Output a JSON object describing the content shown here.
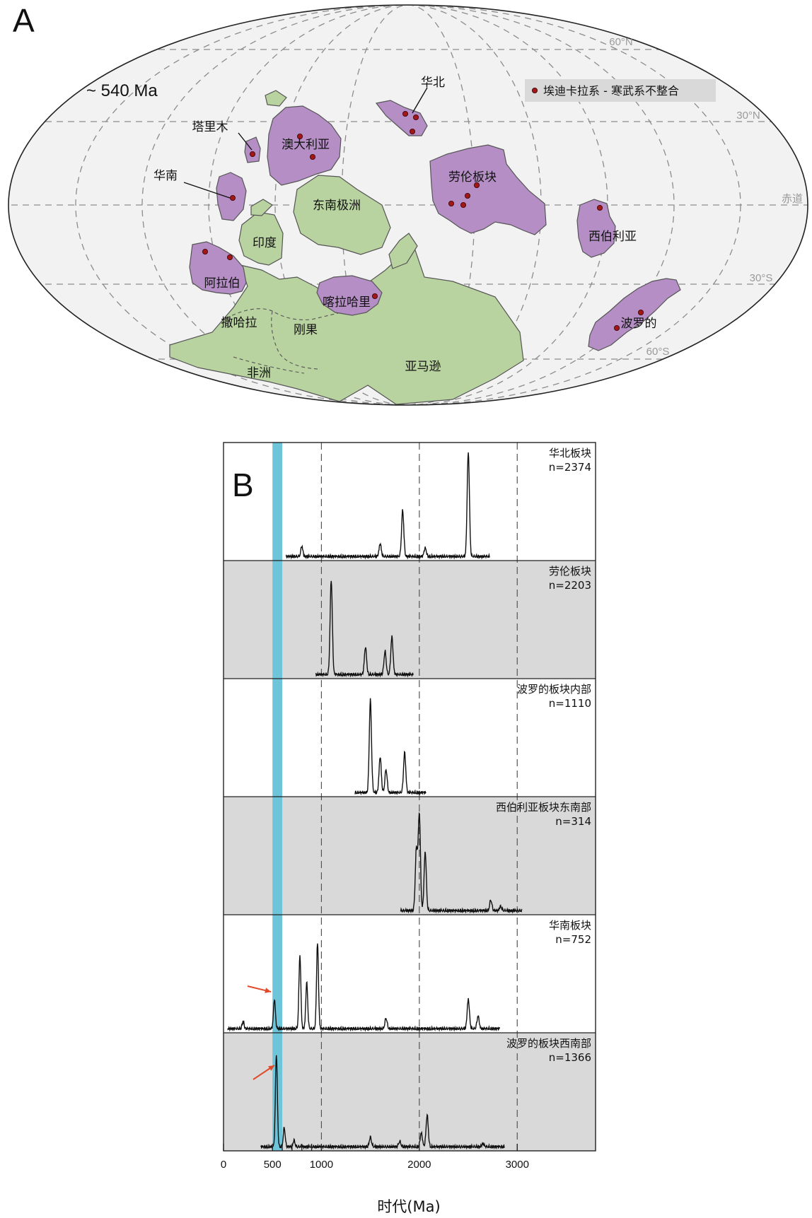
{
  "panel_a": {
    "letter": "A",
    "age_label": "~ 540 Ma",
    "legend_label": "埃迪卡拉系 - 寒武系不整合",
    "latitudes": [
      "60°N",
      "30°N",
      "赤道",
      "30°S",
      "60°S"
    ],
    "colors": {
      "ocean": "#f2f2f2",
      "gondwana": "#b9d3a0",
      "block": "#b48ec4",
      "dot": "#a01818",
      "legend_bg": "#d9d9d9"
    },
    "blocks": [
      {
        "name": "华北",
        "group": "block"
      },
      {
        "name": "塔里木",
        "group": "block"
      },
      {
        "name": "澳大利亚",
        "group": "block"
      },
      {
        "name": "华南",
        "group": "block"
      },
      {
        "name": "劳伦板块",
        "group": "block"
      },
      {
        "name": "西伯利亚",
        "group": "block"
      },
      {
        "name": "阿拉伯",
        "group": "block"
      },
      {
        "name": "喀拉哈里",
        "group": "block"
      },
      {
        "name": "波罗的",
        "group": "block"
      },
      {
        "name": "印度",
        "group": "gondwana"
      },
      {
        "name": "东南极洲",
        "group": "gondwana"
      },
      {
        "name": "撒哈拉",
        "group": "gondwana"
      },
      {
        "name": "刚果",
        "group": "gondwana"
      },
      {
        "name": "非洲",
        "group": "gondwana"
      },
      {
        "name": "亚马逊",
        "group": "gondwana"
      }
    ]
  },
  "panel_b": {
    "letter": "B",
    "chart_data": {
      "type": "line",
      "xlabel": "时代(Ma)",
      "xlim": [
        0,
        3800
      ],
      "x_ticks": [
        0,
        500,
        1000,
        2000,
        3000
      ],
      "minor_ticks": [
        600,
        700,
        800,
        900
      ],
      "gridlines_x": [
        1000,
        2000,
        3000
      ],
      "highlight_band": [
        500,
        600
      ],
      "highlight_color": "#6ec5d9",
      "panel_colors": [
        "#ffffff",
        "#d9d9d9"
      ],
      "series": [
        {
          "name": "华北板块",
          "count": "n=2374",
          "peaks": [
            [
              800,
              0.1
            ],
            [
              1600,
              0.12
            ],
            [
              1830,
              0.44
            ],
            [
              2060,
              0.08
            ],
            [
              2500,
              1.0
            ]
          ]
        },
        {
          "name": "劳伦板块",
          "count": "n=2203",
          "peaks": [
            [
              1100,
              0.9
            ],
            [
              1450,
              0.26
            ],
            [
              1650,
              0.22
            ],
            [
              1720,
              0.36
            ]
          ]
        },
        {
          "name": "波罗的板块内部",
          "count": "n=1110",
          "peaks": [
            [
              1500,
              0.88
            ],
            [
              1600,
              0.34
            ],
            [
              1660,
              0.22
            ],
            [
              1850,
              0.38
            ]
          ]
        },
        {
          "name": "西伯利亚板块东南部",
          "count": "n=314",
          "peaks": [
            [
              1970,
              0.58
            ],
            [
              2000,
              0.92
            ],
            [
              2060,
              0.56
            ],
            [
              2730,
              0.1
            ],
            [
              2830,
              0.04
            ]
          ]
        },
        {
          "name": "华南板块",
          "count": "n=752",
          "peaks": [
            [
              200,
              0.07
            ],
            [
              520,
              0.28
            ],
            [
              780,
              0.7
            ],
            [
              850,
              0.44
            ],
            [
              960,
              0.82
            ],
            [
              1660,
              0.1
            ],
            [
              2500,
              0.28
            ],
            [
              2600,
              0.12
            ]
          ]
        },
        {
          "name": "波罗的板块西南部",
          "count": "n=1366",
          "peaks": [
            [
              540,
              0.88
            ],
            [
              620,
              0.18
            ],
            [
              720,
              0.06
            ],
            [
              1500,
              0.09
            ],
            [
              1800,
              0.05
            ],
            [
              2020,
              0.13
            ],
            [
              2080,
              0.3
            ],
            [
              2650,
              0.03
            ]
          ]
        }
      ],
      "arrow_color": "#e04a2a",
      "arrows_on": [
        "华南板块",
        "波罗的板块西南部"
      ]
    }
  }
}
